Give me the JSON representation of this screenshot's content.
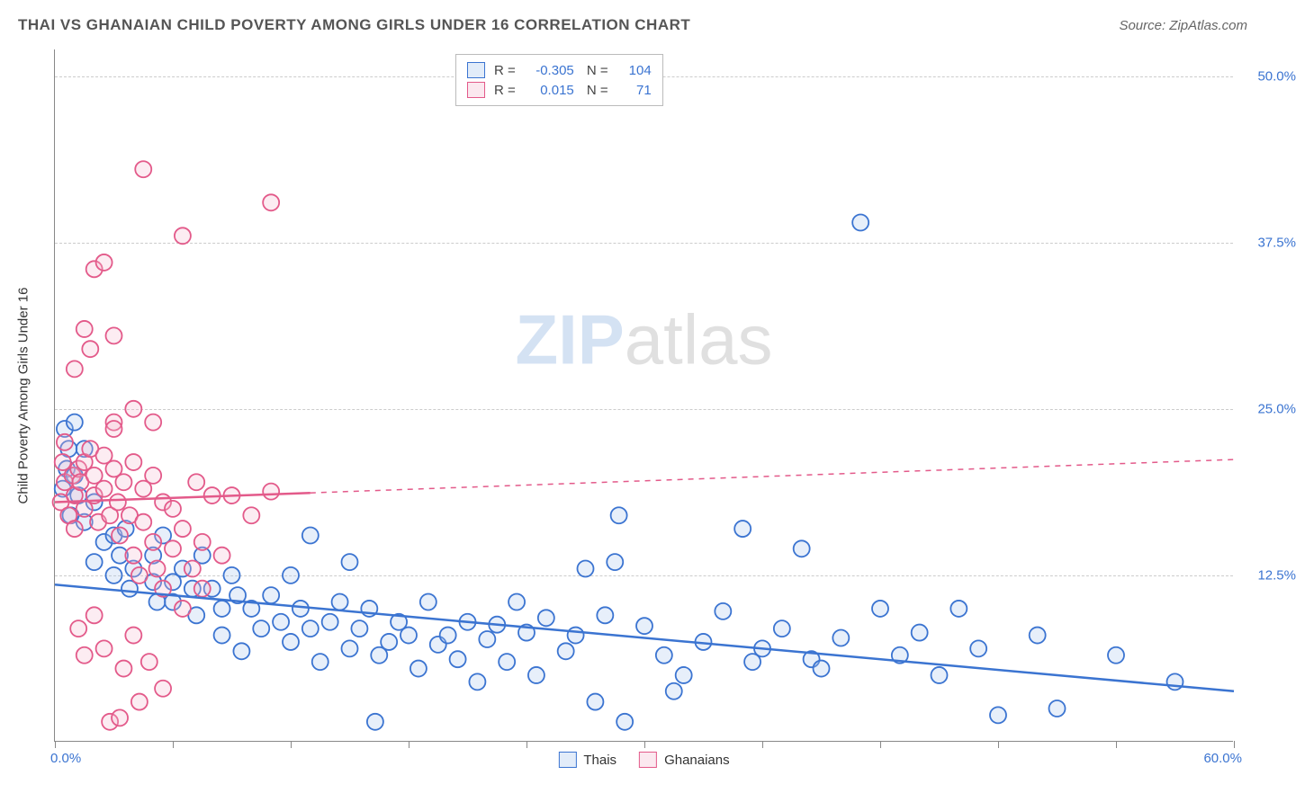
{
  "header": {
    "title": "THAI VS GHANAIAN CHILD POVERTY AMONG GIRLS UNDER 16 CORRELATION CHART",
    "source": "Source: ZipAtlas.com"
  },
  "watermark": {
    "part1": "ZIP",
    "part2": "atlas"
  },
  "chart": {
    "type": "scatter",
    "y_axis_title": "Child Poverty Among Girls Under 16",
    "xlim": [
      0,
      60
    ],
    "ylim": [
      0,
      52
    ],
    "x_min_label": "0.0%",
    "x_max_label": "60.0%",
    "y_ticks": [
      {
        "value": 12.5,
        "label": "12.5%"
      },
      {
        "value": 25.0,
        "label": "25.0%"
      },
      {
        "value": 37.5,
        "label": "37.5%"
      },
      {
        "value": 50.0,
        "label": "50.0%"
      }
    ],
    "x_tick_values": [
      0,
      6,
      12,
      18,
      24,
      30,
      36,
      42,
      48,
      54,
      60
    ],
    "grid_color": "#cccccc",
    "background_color": "#ffffff",
    "marker_radius": 9,
    "marker_stroke_width": 1.8,
    "marker_fill_opacity": 0.28,
    "trend_line_width": 2.5,
    "series": [
      {
        "key": "thais",
        "label": "Thais",
        "color_stroke": "#3b74d1",
        "color_fill": "#a9c6ee",
        "r": "-0.305",
        "n": "104",
        "trend": {
          "x1": 0,
          "y1": 11.8,
          "x2": 60,
          "y2": 3.8,
          "solid_until_x": 60
        },
        "points": [
          [
            0.5,
            23.5
          ],
          [
            0.7,
            22
          ],
          [
            0.6,
            20.5
          ],
          [
            0.4,
            19
          ],
          [
            1,
            20
          ],
          [
            1.2,
            18.5
          ],
          [
            0.8,
            17
          ],
          [
            1.5,
            22
          ],
          [
            1,
            24
          ],
          [
            1.5,
            16.5
          ],
          [
            2,
            18
          ],
          [
            2.5,
            15
          ],
          [
            2,
            13.5
          ],
          [
            3,
            15.5
          ],
          [
            3.3,
            14
          ],
          [
            3,
            12.5
          ],
          [
            3.6,
            16
          ],
          [
            4,
            13
          ],
          [
            3.8,
            11.5
          ],
          [
            5,
            14
          ],
          [
            5,
            12
          ],
          [
            5.2,
            10.5
          ],
          [
            5.5,
            15.5
          ],
          [
            6,
            12
          ],
          [
            6,
            10.5
          ],
          [
            6.5,
            13
          ],
          [
            7,
            11.5
          ],
          [
            7.2,
            9.5
          ],
          [
            7.5,
            14
          ],
          [
            8,
            11.5
          ],
          [
            8.5,
            10
          ],
          [
            8.5,
            8
          ],
          [
            9,
            12.5
          ],
          [
            9.3,
            11
          ],
          [
            9.5,
            6.8
          ],
          [
            10,
            10
          ],
          [
            10.5,
            8.5
          ],
          [
            11,
            11
          ],
          [
            11.5,
            9
          ],
          [
            12,
            12.5
          ],
          [
            12,
            7.5
          ],
          [
            12.5,
            10
          ],
          [
            13,
            8.5
          ],
          [
            13,
            15.5
          ],
          [
            13.5,
            6
          ],
          [
            14,
            9
          ],
          [
            14.5,
            10.5
          ],
          [
            15,
            13.5
          ],
          [
            15,
            7
          ],
          [
            15.5,
            8.5
          ],
          [
            16,
            10
          ],
          [
            16.3,
            1.5
          ],
          [
            16.5,
            6.5
          ],
          [
            17,
            7.5
          ],
          [
            17.5,
            9
          ],
          [
            18,
            8
          ],
          [
            18.5,
            5.5
          ],
          [
            19,
            10.5
          ],
          [
            19.5,
            7.3
          ],
          [
            20,
            8
          ],
          [
            20.5,
            6.2
          ],
          [
            21,
            9
          ],
          [
            21.5,
            4.5
          ],
          [
            22,
            7.7
          ],
          [
            22.5,
            8.8
          ],
          [
            23,
            6
          ],
          [
            23.5,
            10.5
          ],
          [
            24,
            8.2
          ],
          [
            24.5,
            5
          ],
          [
            25,
            9.3
          ],
          [
            26,
            6.8
          ],
          [
            26.5,
            8
          ],
          [
            27,
            13
          ],
          [
            27.5,
            3
          ],
          [
            28,
            9.5
          ],
          [
            28.5,
            13.5
          ],
          [
            28.7,
            17
          ],
          [
            29,
            1.5
          ],
          [
            30,
            8.7
          ],
          [
            31,
            6.5
          ],
          [
            31.5,
            3.8
          ],
          [
            32,
            5
          ],
          [
            33,
            7.5
          ],
          [
            34,
            9.8
          ],
          [
            35,
            16
          ],
          [
            35.5,
            6
          ],
          [
            36,
            7
          ],
          [
            37,
            8.5
          ],
          [
            38,
            14.5
          ],
          [
            38.5,
            6.2
          ],
          [
            39,
            5.5
          ],
          [
            40,
            7.8
          ],
          [
            41,
            39
          ],
          [
            42,
            10
          ],
          [
            43,
            6.5
          ],
          [
            44,
            8.2
          ],
          [
            45,
            5
          ],
          [
            46,
            10
          ],
          [
            47,
            7
          ],
          [
            48,
            2
          ],
          [
            50,
            8
          ],
          [
            51,
            2.5
          ],
          [
            54,
            6.5
          ],
          [
            57,
            4.5
          ]
        ]
      },
      {
        "key": "ghanaians",
        "label": "Ghanaians",
        "color_stroke": "#e35a8a",
        "color_fill": "#f4b9cf",
        "r": "0.015",
        "n": "71",
        "trend": {
          "x1": 0,
          "y1": 18.0,
          "x2": 60,
          "y2": 21.2,
          "solid_until_x": 13
        },
        "points": [
          [
            0.3,
            18
          ],
          [
            0.5,
            19.5
          ],
          [
            0.4,
            21
          ],
          [
            0.7,
            17
          ],
          [
            0.9,
            20
          ],
          [
            0.5,
            22.5
          ],
          [
            1,
            18.5
          ],
          [
            1.2,
            20.5
          ],
          [
            1,
            16
          ],
          [
            1.3,
            19.5
          ],
          [
            1.5,
            21
          ],
          [
            1.5,
            17.5
          ],
          [
            1.8,
            22
          ],
          [
            2,
            18.5
          ],
          [
            2,
            20
          ],
          [
            2.2,
            16.5
          ],
          [
            2.5,
            19
          ],
          [
            2.5,
            21.5
          ],
          [
            2.8,
            17
          ],
          [
            3,
            24
          ],
          [
            3,
            23.5
          ],
          [
            3,
            20.5
          ],
          [
            3.2,
            18
          ],
          [
            3.3,
            15.5
          ],
          [
            3.5,
            19.5
          ],
          [
            3.8,
            17
          ],
          [
            4,
            14
          ],
          [
            4,
            21
          ],
          [
            4.3,
            12.5
          ],
          [
            4.5,
            19
          ],
          [
            4.5,
            16.5
          ],
          [
            5,
            15
          ],
          [
            5,
            20
          ],
          [
            5.2,
            13
          ],
          [
            5.5,
            18
          ],
          [
            5.5,
            11.5
          ],
          [
            6,
            14.5
          ],
          [
            6,
            17.5
          ],
          [
            6.5,
            10
          ],
          [
            6.5,
            16
          ],
          [
            7,
            13
          ],
          [
            7.2,
            19.5
          ],
          [
            7.5,
            11.5
          ],
          [
            7.5,
            15
          ],
          [
            8,
            18.5
          ],
          [
            8.5,
            14
          ],
          [
            1.5,
            31
          ],
          [
            1.8,
            29.5
          ],
          [
            3,
            30.5
          ],
          [
            2,
            35.5
          ],
          [
            2.5,
            36
          ],
          [
            1,
            28
          ],
          [
            4,
            25
          ],
          [
            5,
            24
          ],
          [
            4.5,
            43
          ],
          [
            6.5,
            38
          ],
          [
            11,
            40.5
          ],
          [
            1.2,
            8.5
          ],
          [
            1.5,
            6.5
          ],
          [
            2,
            9.5
          ],
          [
            2.5,
            7
          ],
          [
            2.8,
            1.5
          ],
          [
            3.3,
            1.8
          ],
          [
            3.5,
            5.5
          ],
          [
            4,
            8
          ],
          [
            4.3,
            3
          ],
          [
            4.8,
            6
          ],
          [
            5.5,
            4
          ],
          [
            9,
            18.5
          ],
          [
            10,
            17
          ],
          [
            11,
            18.8
          ]
        ]
      }
    ]
  },
  "stats_legend_labels": {
    "r_prefix": "R =",
    "n_prefix": "N ="
  },
  "colors": {
    "text_title": "#555555",
    "text_axis_value": "#3b74d1",
    "axis_line": "#888888"
  }
}
